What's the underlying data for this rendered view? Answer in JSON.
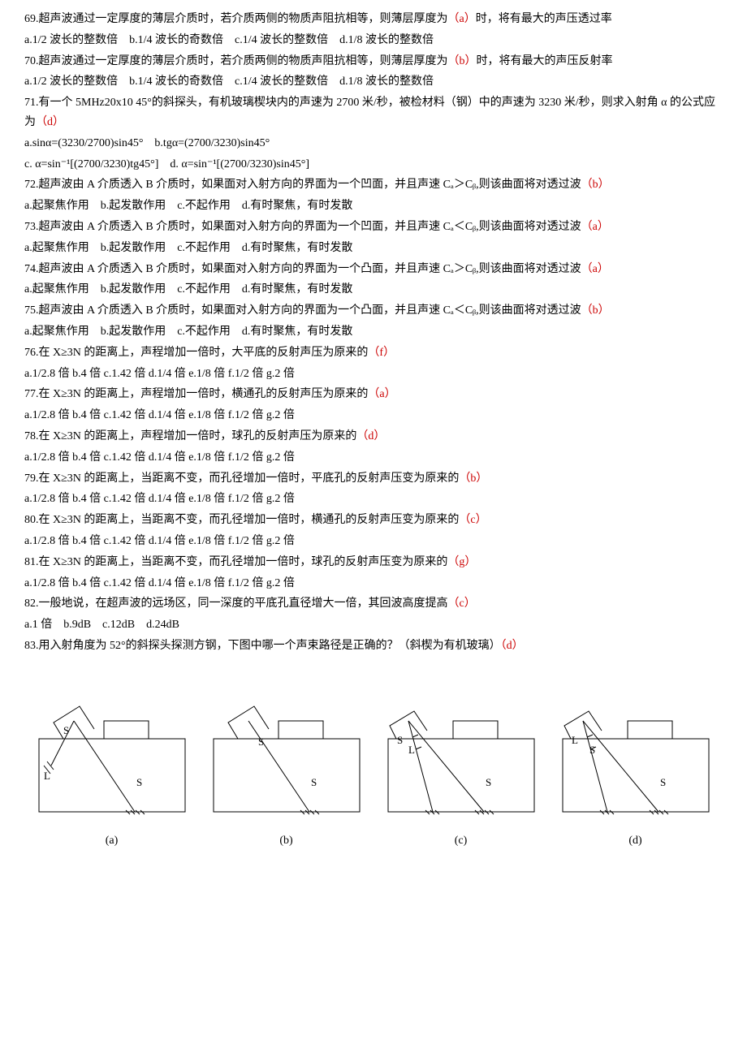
{
  "questions": [
    {
      "num": "69.",
      "text": "超声波通过一定厚度的薄层介质时，若介质两侧的物质声阻抗相等，则薄层厚度为",
      "answer": "（a）",
      "tail": "时，将有最大的声压透过率",
      "options": "a.1/2 波长的整数倍　b.1/4 波长的奇数倍　c.1/4 波长的整数倍　d.1/8 波长的整数倍"
    },
    {
      "num": "70.",
      "text": "超声波通过一定厚度的薄层介质时，若介质两侧的物质声阻抗相等，则薄层厚度为",
      "answer": "（b）",
      "tail": "时，将有最大的声压反射率",
      "options": "a.1/2 波长的整数倍　b.1/4 波长的奇数倍　c.1/4 波长的整数倍　d.1/8 波长的整数倍"
    },
    {
      "num": "71.",
      "text": "有一个 5MHz20x10 45°的斜探头，有机玻璃楔块内的声速为 2700 米/秒，被检材料（钢）中的声速为 3230 米/秒，则求入射角 α 的公式应为",
      "answer": "（d）",
      "tail": "",
      "options": "a.sinα=(3230/2700)sin45°　b.tgα=(2700/3230)sin45°",
      "options2": "c. α=sin⁻¹[(2700/3230)tg45°]　d. α=sin⁻¹[(2700/3230)sin45°]"
    },
    {
      "num": "72.",
      "text": "超声波由 A 介质透入 B 介质时，如果面对入射方向的界面为一个凹面，并且声速 Cₐ＞Cᵦ,则该曲面将对透过波",
      "answer": "（b）",
      "tail": "",
      "options": "a.起聚焦作用　b.起发散作用　c.不起作用　d.有时聚焦，有时发散"
    },
    {
      "num": "73.",
      "text": "超声波由 A 介质透入 B 介质时，如果面对入射方向的界面为一个凹面，并且声速 Cₐ＜Cᵦ,则该曲面将对透过波",
      "answer": "（a）",
      "tail": "",
      "options": "a.起聚焦作用　b.起发散作用　c.不起作用　d.有时聚焦，有时发散"
    },
    {
      "num": "74.",
      "text": "超声波由 A 介质透入 B 介质时，如果面对入射方向的界面为一个凸面，并且声速 Cₐ＞Cᵦ,则该曲面将对透过波",
      "answer": "（a）",
      "tail": "",
      "options": "a.起聚焦作用　b.起发散作用　c.不起作用　d.有时聚焦，有时发散"
    },
    {
      "num": "75.",
      "text": "超声波由 A 介质透入 B 介质时，如果面对入射方向的界面为一个凸面，并且声速 Cₐ＜Cᵦ,则该曲面将对透过波",
      "answer": "（b）",
      "tail": "",
      "options": "a.起聚焦作用　b.起发散作用　c.不起作用　d.有时聚焦，有时发散"
    },
    {
      "num": "76.",
      "text": "在 X≥3N 的距离上，声程增加一倍时，大平底的反射声压为原来的",
      "answer": "（f）",
      "tail": "",
      "options": "a.1/2.8 倍  b.4 倍  c.1.42 倍  d.1/4 倍  e.1/8 倍  f.1/2 倍  g.2 倍"
    },
    {
      "num": "77.",
      "text": "在 X≥3N 的距离上，声程增加一倍时，横通孔的反射声压为原来的",
      "answer": "（a）",
      "tail": "",
      "options": "a.1/2.8 倍  b.4 倍  c.1.42 倍  d.1/4 倍  e.1/8 倍  f.1/2 倍  g.2 倍"
    },
    {
      "num": "78.",
      "text": "在 X≥3N 的距离上，声程增加一倍时，球孔的反射声压为原来的",
      "answer": "（d）",
      "tail": "",
      "options": "a.1/2.8 倍  b.4 倍  c.1.42 倍  d.1/4 倍  e.1/8 倍  f.1/2 倍  g.2 倍"
    },
    {
      "num": "79.",
      "text": "在 X≥3N 的距离上，当距离不变，而孔径增加一倍时，平底孔的反射声压变为原来的",
      "answer": "（b）",
      "tail": "",
      "options": "a.1/2.8 倍  b.4 倍  c.1.42 倍  d.1/4 倍  e.1/8 倍  f.1/2 倍  g.2 倍"
    },
    {
      "num": "80.",
      "text": "在 X≥3N 的距离上，当距离不变，而孔径增加一倍时，横通孔的反射声压变为原来的",
      "answer": "（c）",
      "tail": "",
      "options": "a.1/2.8 倍  b.4 倍  c.1.42 倍  d.1/4 倍  e.1/8 倍  f.1/2 倍  g.2 倍"
    },
    {
      "num": "81.",
      "text": "在 X≥3N 的距离上，当距离不变，而孔径增加一倍时，球孔的反射声压变为原来的",
      "answer": "（g）",
      "tail": "",
      "options": "a.1/2.8 倍  b.4 倍  c.1.42 倍  d.1/4 倍  e.1/8 倍  f.1/2 倍  g.2 倍"
    },
    {
      "num": "82.",
      "text": "一般地说，在超声波的远场区，同一深度的平底孔直径增大一倍，其回波高度提高",
      "answer": "（c）",
      "tail": "",
      "options": "a.1 倍　b.9dB　c.12dB　d.24dB"
    },
    {
      "num": "83.",
      "text": "用入射角度为 52°的斜探头探测方钢，下图中哪一个声束路径是正确的？（斜楔为有机玻璃）",
      "answer": "（d）",
      "tail": "",
      "options": ""
    }
  ],
  "figures": {
    "labels": {
      "s": "S",
      "l": "L"
    },
    "captions": [
      "(a)",
      "(b)",
      "(c)",
      "(d)"
    ],
    "stroke": "#000000",
    "stroke_width": 1,
    "font_size": 13
  }
}
